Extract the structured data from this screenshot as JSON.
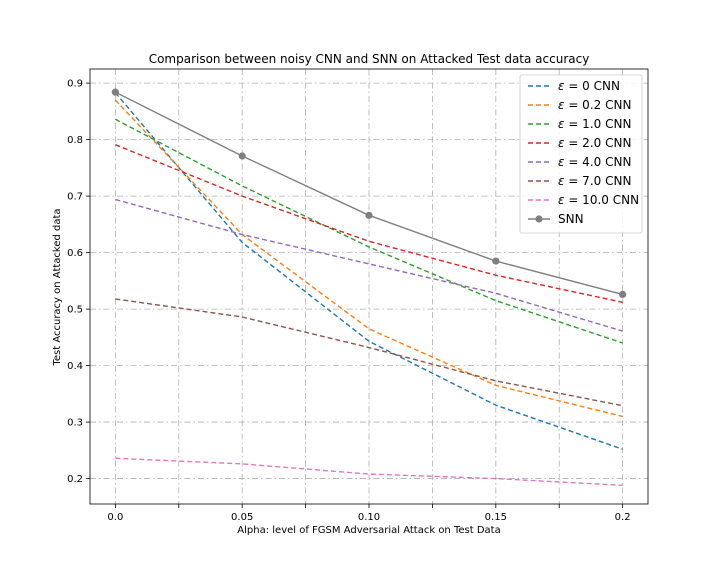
{
  "chart_data": {
    "type": "line",
    "title": "Comparison between noisy CNN and SNN on Attacked Test data accuracy",
    "xlabel": "Alpha: level of FGSM Adversarial Attack on Test Data",
    "ylabel": "Test Accuracy on Attacked data",
    "xlim": [
      -0.01,
      0.21
    ],
    "ylim": [
      0.155,
      0.925
    ],
    "x": [
      0.0,
      0.05,
      0.1,
      0.15,
      0.2
    ],
    "x_tick_labels": [
      "0.0",
      "0.05",
      "0.10",
      "0.15",
      "0.2"
    ],
    "x_grid_ticks": [
      0.0,
      0.025,
      0.05,
      0.075,
      0.1,
      0.125,
      0.15,
      0.175,
      0.2
    ],
    "y_ticks": [
      0.2,
      0.3,
      0.4,
      0.5,
      0.6,
      0.7,
      0.8,
      0.9
    ],
    "y_tick_labels": [
      "0.2",
      "0.3",
      "0.4",
      "0.5",
      "0.6",
      "0.7",
      "0.8",
      "0.9"
    ],
    "grid": true,
    "legend_position": "upper right",
    "series": [
      {
        "name": "ε = 0 CNN",
        "legend_prefix": "ε",
        "legend_suffix": " = 0 CNN",
        "values": [
          0.883,
          0.618,
          0.443,
          0.33,
          0.252
        ],
        "color": "#1f77b4",
        "style": "dashed"
      },
      {
        "name": "ε = 0.2 CNN",
        "legend_prefix": "ε",
        "legend_suffix": " = 0.2 CNN",
        "values": [
          0.87,
          0.632,
          0.465,
          0.365,
          0.31
        ],
        "color": "#ff7f0e",
        "style": "dashed"
      },
      {
        "name": "ε = 1.0 CNN",
        "legend_prefix": "ε",
        "legend_suffix": " = 1.0 CNN",
        "values": [
          0.836,
          0.718,
          0.61,
          0.515,
          0.44
        ],
        "color": "#2ca02c",
        "style": "dashed"
      },
      {
        "name": "ε = 2.0 CNN",
        "legend_prefix": "ε",
        "legend_suffix": " = 2.0 CNN",
        "values": [
          0.791,
          0.7,
          0.62,
          0.56,
          0.512
        ],
        "color": "#d62728",
        "style": "dashed"
      },
      {
        "name": "ε = 4.0 CNN",
        "legend_prefix": "ε",
        "legend_suffix": " = 4.0 CNN",
        "values": [
          0.694,
          0.632,
          0.58,
          0.528,
          0.461
        ],
        "color": "#9467bd",
        "style": "dashed"
      },
      {
        "name": "ε = 7.0 CNN",
        "legend_prefix": "ε",
        "legend_suffix": " = 7.0 CNN",
        "values": [
          0.518,
          0.486,
          0.432,
          0.373,
          0.329
        ],
        "color": "#8c564b",
        "style": "dashed"
      },
      {
        "name": "ε = 10.0 CNN",
        "legend_prefix": "ε",
        "legend_suffix": " = 10.0 CNN",
        "values": [
          0.236,
          0.226,
          0.208,
          0.2,
          0.188
        ],
        "color": "#e377c2",
        "style": "dashed"
      },
      {
        "name": "SNN",
        "legend_prefix": "",
        "legend_suffix": "SNN",
        "values": [
          0.884,
          0.771,
          0.666,
          0.585,
          0.526
        ],
        "color": "#7f7f7f",
        "style": "solid",
        "marker": "circle"
      }
    ]
  }
}
